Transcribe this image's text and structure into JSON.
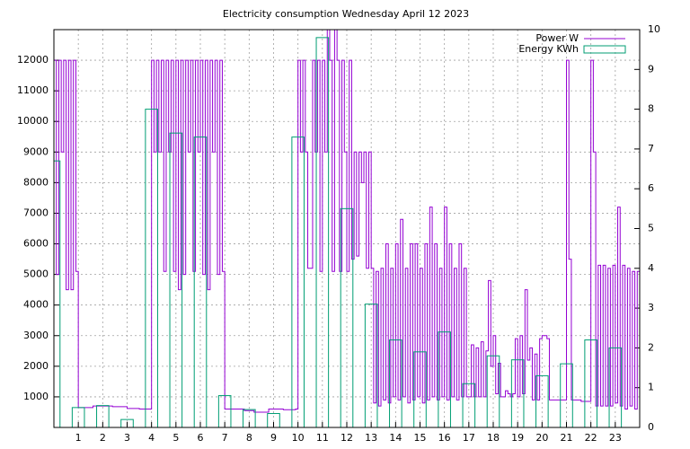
{
  "chart_data": {
    "type": "line",
    "title": "Electricity consumption Wednesday April 12 2023",
    "xlim": [
      0,
      24
    ],
    "xticks": [
      1,
      2,
      3,
      4,
      5,
      6,
      7,
      8,
      9,
      10,
      11,
      12,
      13,
      14,
      15,
      16,
      17,
      18,
      19,
      20,
      21,
      22,
      23
    ],
    "ylim": [
      0,
      13000
    ],
    "yticks": [
      1000,
      2000,
      3000,
      4000,
      5000,
      6000,
      7000,
      8000,
      9000,
      10000,
      11000,
      12000
    ],
    "y2lim": [
      0,
      10
    ],
    "y2ticks": [
      0,
      1,
      2,
      3,
      4,
      5,
      6,
      7,
      8,
      9,
      10
    ],
    "grid": true,
    "legend": "upper right",
    "series": [
      {
        "name": "Power W",
        "color": "#9400d3",
        "style": "steps",
        "x": [
          0,
          0.1,
          0.2,
          0.3,
          0.4,
          0.5,
          0.6,
          0.7,
          0.8,
          0.9,
          1.0,
          1.6,
          2.4,
          3.0,
          3.5,
          3.9,
          4.0,
          4.1,
          4.2,
          4.3,
          4.4,
          4.5,
          4.6,
          4.7,
          4.8,
          4.9,
          5.0,
          5.1,
          5.2,
          5.3,
          5.4,
          5.5,
          5.6,
          5.7,
          5.8,
          5.9,
          6.0,
          6.1,
          6.2,
          6.3,
          6.4,
          6.5,
          6.6,
          6.7,
          6.8,
          6.9,
          7.0,
          7.8,
          8.2,
          8.8,
          9.4,
          9.9,
          10.0,
          10.1,
          10.2,
          10.3,
          10.4,
          10.5,
          10.6,
          10.7,
          10.8,
          10.9,
          11.0,
          11.1,
          11.2,
          11.3,
          11.4,
          11.5,
          11.6,
          11.7,
          11.8,
          11.9,
          12.0,
          12.1,
          12.2,
          12.3,
          12.4,
          12.5,
          12.6,
          12.7,
          12.8,
          12.9,
          13.0,
          13.1,
          13.2,
          13.3,
          13.4,
          13.5,
          13.6,
          13.7,
          13.8,
          13.9,
          14.0,
          14.1,
          14.2,
          14.3,
          14.4,
          14.5,
          14.6,
          14.7,
          14.8,
          14.9,
          15.0,
          15.1,
          15.2,
          15.3,
          15.4,
          15.5,
          15.6,
          15.7,
          15.8,
          15.9,
          16.0,
          16.1,
          16.2,
          16.3,
          16.4,
          16.5,
          16.6,
          16.7,
          16.8,
          16.9,
          17.0,
          17.1,
          17.2,
          17.3,
          17.4,
          17.5,
          17.6,
          17.7,
          17.8,
          17.9,
          18.0,
          18.1,
          18.2,
          18.3,
          18.4,
          18.5,
          18.6,
          18.7,
          18.8,
          18.9,
          19.0,
          19.1,
          19.2,
          19.3,
          19.4,
          19.5,
          19.6,
          19.7,
          19.8,
          19.9,
          20.0,
          20.1,
          20.2,
          20.3,
          20.4,
          20.5,
          20.6,
          20.7,
          20.8,
          20.9,
          21.0,
          21.1,
          21.2,
          21.6,
          22.0,
          22.1,
          22.2,
          22.3,
          22.4,
          22.5,
          22.6,
          22.7,
          22.8,
          22.9,
          23.0,
          23.1,
          23.2,
          23.3,
          23.4,
          23.5,
          23.6,
          23.7,
          23.8,
          23.9
        ],
        "values": [
          12000,
          5000,
          12000,
          9000,
          12000,
          4500,
          12000,
          4500,
          12000,
          5100,
          650,
          700,
          680,
          620,
          600,
          600,
          12000,
          9000,
          12000,
          9000,
          12000,
          5100,
          12000,
          9000,
          12000,
          5100,
          12000,
          4500,
          12000,
          5000,
          12000,
          9000,
          12000,
          5100,
          12000,
          9000,
          12000,
          5000,
          12000,
          4500,
          12000,
          9000,
          12000,
          5000,
          12000,
          5100,
          600,
          550,
          500,
          600,
          580,
          600,
          12000,
          9000,
          12000,
          9000,
          5200,
          5200,
          12000,
          9000,
          12000,
          5100,
          12000,
          9000,
          13000,
          12000,
          5100,
          13000,
          12000,
          5100,
          12000,
          9000,
          5100,
          12000,
          5500,
          9000,
          5600,
          9000,
          8000,
          9000,
          5200,
          9000,
          5200,
          800,
          5100,
          700,
          5200,
          900,
          6000,
          800,
          5200,
          1000,
          6000,
          900,
          6800,
          1000,
          5200,
          800,
          6000,
          900,
          6000,
          1000,
          5200,
          800,
          6000,
          900,
          7200,
          1000,
          6000,
          900,
          5200,
          1000,
          7200,
          900,
          6000,
          1000,
          5200,
          900,
          6000,
          1000,
          5200,
          1000,
          1000,
          2700,
          1000,
          2600,
          1000,
          2800,
          1000,
          2500,
          4800,
          2000,
          3000,
          1100,
          2100,
          1000,
          1000,
          1200,
          1100,
          1000,
          1100,
          2900,
          1000,
          3000,
          1100,
          4500,
          2200,
          2600,
          900,
          2400,
          900,
          2900,
          3000,
          3000,
          2900,
          900,
          900,
          900,
          900,
          900,
          900,
          900,
          12000,
          5500,
          900,
          850,
          12000,
          9000,
          700,
          5300,
          700,
          5300,
          700,
          5200,
          700,
          5300,
          800,
          7200,
          700,
          5300,
          600,
          5200,
          700,
          5100,
          600,
          5100
        ]
      },
      {
        "name": "Energy KWh",
        "color": "#009e73",
        "style": "boxes",
        "axis": "y2",
        "x": [
          0,
          1,
          2,
          3,
          4,
          5,
          6,
          7,
          8,
          9,
          10,
          11,
          12,
          13,
          14,
          15,
          16,
          17,
          18,
          19,
          20,
          21,
          22,
          23
        ],
        "values": [
          6.7,
          0.5,
          0.55,
          0.2,
          8.0,
          7.4,
          7.3,
          0.8,
          0.45,
          0.35,
          7.3,
          9.8,
          5.5,
          3.1,
          2.2,
          1.9,
          2.4,
          1.1,
          1.8,
          1.7,
          1.3,
          1.6,
          2.2,
          2.0
        ]
      }
    ]
  }
}
